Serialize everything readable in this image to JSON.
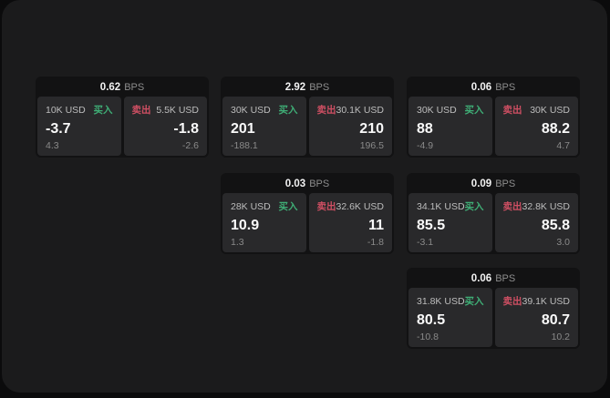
{
  "labels": {
    "buy": "买入",
    "sell": "卖出",
    "bps": "BPS"
  },
  "colors": {
    "buy": "#3fae76",
    "sell": "#cf4f63",
    "panel": "#1b1b1c",
    "card": "#121213",
    "tile": "#29292b"
  },
  "cards": [
    {
      "bps": "0.62",
      "buy": {
        "size": "10K USD",
        "value": "-3.7",
        "sub": "4.3"
      },
      "sell": {
        "size": "5.5K USD",
        "value": "-1.8",
        "sub": "-2.6"
      }
    },
    {
      "bps": "2.92",
      "buy": {
        "size": "30K USD",
        "value": "201",
        "sub": "-188.1"
      },
      "sell": {
        "size": "30.1K USD",
        "value": "210",
        "sub": "196.5"
      }
    },
    {
      "bps": "0.06",
      "buy": {
        "size": "30K USD",
        "value": "88",
        "sub": "-4.9"
      },
      "sell": {
        "size": "30K USD",
        "value": "88.2",
        "sub": "4.7"
      }
    },
    {
      "bps": "0.03",
      "buy": {
        "size": "28K USD",
        "value": "10.9",
        "sub": "1.3"
      },
      "sell": {
        "size": "32.6K USD",
        "value": "11",
        "sub": "-1.8"
      }
    },
    {
      "bps": "0.09",
      "buy": {
        "size": "34.1K USD",
        "value": "85.5",
        "sub": "-3.1"
      },
      "sell": {
        "size": "32.8K USD",
        "value": "85.8",
        "sub": "3.0"
      }
    },
    {
      "bps": "0.06",
      "buy": {
        "size": "31.8K USD",
        "value": "80.5",
        "sub": "-10.8"
      },
      "sell": {
        "size": "39.1K USD",
        "value": "80.7",
        "sub": "10.2"
      }
    }
  ]
}
